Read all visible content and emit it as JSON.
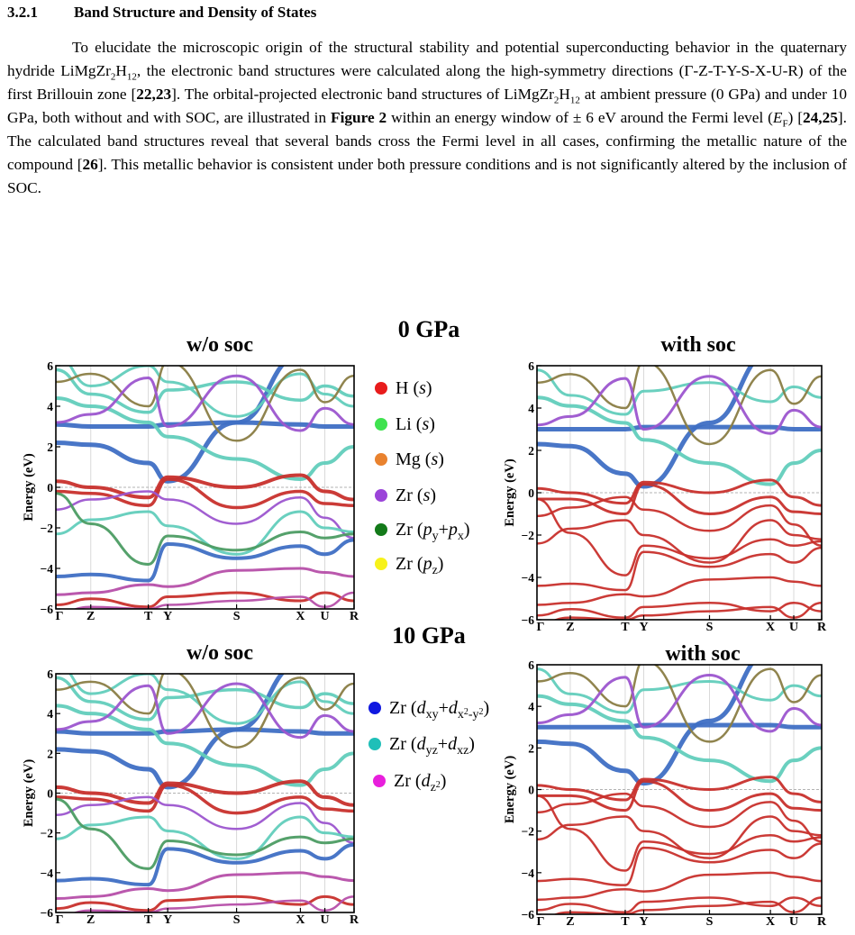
{
  "section": {
    "number": "3.2.1",
    "title": "Band Structure and Density of States"
  },
  "paragraph": {
    "p01": "To elucidate the microscopic origin of the structural stability and potential superconducting behavior in the quaternary hydride LiMgZr",
    "p02": "2",
    "p03": "H",
    "p04": "12",
    "p05": ", the electronic band structures were calculated along the high-symmetry directions (Γ-Z-T-Y-S-X-U-R) of the first Brillouin zone [",
    "p06": "22,23",
    "p07": "]. The orbital-projected electronic band structures of LiMgZr",
    "p08": "2",
    "p09": "H",
    "p10": "12",
    "p11": " at ambient pressure (0 GPa) and under 10 GPa, both without and with SOC, are illustrated in ",
    "p12": "Figure 2",
    "p13": " within an energy window of ± 6 eV around the Fermi level (",
    "p14": "E",
    "p15": "F",
    "p16": ") [",
    "p17": "24,25",
    "p18": "]. The calculated band structures reveal that several bands cross the Fermi level in all cases, confirming the metallic nature of the compound [",
    "p19": "26",
    "p20": "]. This metallic behavior is consistent under both pressure conditions and is not significantly altered by the inclusion of SOC."
  },
  "figure": {
    "group_titles": [
      "0 GPa",
      "10 GPa"
    ],
    "panel_titles": {
      "without_soc": "w/o soc",
      "with_soc": "with soc"
    },
    "y_axis_label": "Energy (eV)",
    "y_ticks": [
      "6",
      "4",
      "2",
      "0",
      "−2",
      "−4",
      "−6"
    ],
    "k_path": [
      "Γ",
      "Z",
      "T",
      "Y",
      "S",
      "X",
      "U",
      "R"
    ],
    "legend": [
      {
        "orbital": "H",
        "sub": "(s)",
        "color": "#e81c1c"
      },
      {
        "orbital": "Li",
        "sub": "(s)",
        "color": "#3fe24f"
      },
      {
        "orbital": "Mg",
        "sub": "(s)",
        "color": "#e9822e"
      },
      {
        "orbital": "Zr",
        "sub": "(s)",
        "color": "#9b44d9"
      },
      {
        "orbital": "Zr",
        "sub": "(py+px)",
        "color": "#137a19"
      },
      {
        "orbital": "Zr",
        "sub": "(pz)",
        "color": "#f7f21a"
      },
      {
        "orbital": "Zr",
        "sub": "(dxy+dx2-y2)",
        "color": "#1018e0"
      },
      {
        "orbital": "Zr",
        "sub": "(dyz+dxz)",
        "color": "#1fbfb8"
      },
      {
        "orbital": "Zr",
        "sub": "(dz2)",
        "color": "#e81fdc"
      }
    ],
    "band_colors": {
      "H": "#c8302c",
      "Li_dyz": "#62cdbc",
      "Zr_d": "#3f6fc4",
      "Zr_s": "#9c55cf",
      "Zr_dz2": "#b64fa9",
      "Mg": "#8a7d44",
      "Zr_p": "#4c9c63"
    }
  }
}
